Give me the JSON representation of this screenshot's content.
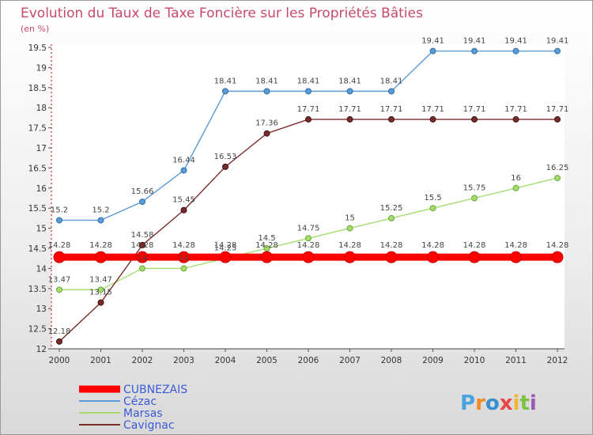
{
  "chart_data": {
    "type": "line",
    "title": "Evolution du Taux de Taxe Foncière sur les Propriétés Bâties",
    "ylabel": "(en %)",
    "x": [
      "2000",
      "2001",
      "2002",
      "2003",
      "2004",
      "2005",
      "2006",
      "2007",
      "2008",
      "2009",
      "2010",
      "2011",
      "2012"
    ],
    "ylim": [
      12,
      19.5
    ],
    "yticks": [
      "12",
      "12.5",
      "13",
      "13.5",
      "14",
      "14.5",
      "15",
      "15.5",
      "16",
      "16.5",
      "17",
      "17.5",
      "18",
      "18.5",
      "19",
      "19.5"
    ],
    "series": [
      {
        "name": "CUBNEZAIS",
        "color": "#ff0000",
        "values": [
          14.28,
          14.28,
          14.28,
          14.28,
          14.28,
          14.28,
          14.28,
          14.28,
          14.28,
          14.28,
          14.28,
          14.28,
          14.28
        ],
        "labels": [
          "14.28",
          "14.28",
          "14.28",
          "14.28",
          "14.28",
          "14.28",
          "14.28",
          "14.28",
          "14.28",
          "14.28",
          "14.28",
          "14.28",
          "14.28"
        ]
      },
      {
        "name": "Cézac",
        "color": "#5a9bd5",
        "values": [
          15.2,
          15.2,
          15.66,
          16.44,
          18.41,
          18.41,
          18.41,
          18.41,
          18.41,
          19.41,
          19.41,
          19.41,
          19.41
        ],
        "labels": [
          "15.2",
          "15.2",
          "15.66",
          "16.44",
          "18.41",
          "18.41",
          "18.41",
          "18.41",
          "18.41",
          "19.41",
          "19.41",
          "19.41",
          "19.41"
        ]
      },
      {
        "name": "Marsas",
        "color": "#a6dc6e",
        "values": [
          13.47,
          13.47,
          14,
          14,
          14.25,
          14.5,
          14.75,
          15,
          15.25,
          15.5,
          15.75,
          16,
          16.25
        ],
        "labels": [
          "13.47",
          "13.47",
          "14",
          "14",
          "14.25",
          "14.5",
          "14.75",
          "15",
          "15.25",
          "15.5",
          "15.75",
          "16",
          "16.25"
        ]
      },
      {
        "name": "Cavignac",
        "color": "#7a2a2a",
        "values": [
          12.18,
          13.15,
          14.58,
          15.45,
          16.53,
          17.36,
          17.71,
          17.71,
          17.71,
          17.71,
          17.71,
          17.71,
          17.71
        ],
        "labels": [
          "12.18",
          "13.15",
          "14.58",
          "15.45",
          "16.53",
          "17.36",
          "17.71",
          "17.71",
          "17.71",
          "17.71",
          "17.71",
          "17.71",
          "17.71"
        ]
      }
    ]
  },
  "logo": {
    "text": "Proxiti"
  }
}
